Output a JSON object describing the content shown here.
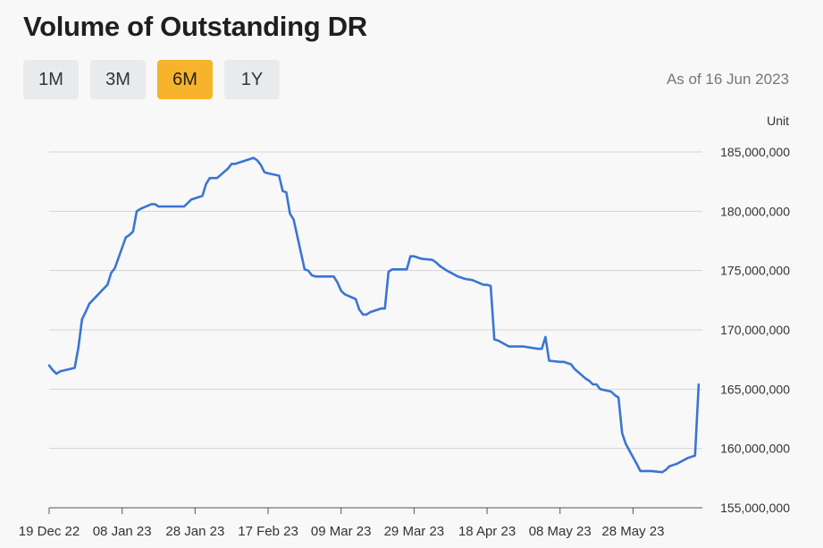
{
  "header": {
    "title": "Volume of Outstanding DR",
    "as_of": "As of 16 Jun 2023",
    "unit": "Unit"
  },
  "range_buttons": [
    {
      "label": "1M",
      "active": false
    },
    {
      "label": "3M",
      "active": false
    },
    {
      "label": "6M",
      "active": true
    },
    {
      "label": "1Y",
      "active": false
    }
  ],
  "colors": {
    "line": "#3a75d3",
    "active_button": "#f7b32b",
    "grid": "#d4d4d4"
  },
  "chart_data": {
    "type": "line",
    "title": "Volume of Outstanding DR",
    "xlabel": "",
    "ylabel": "Unit",
    "ylim": [
      155000000,
      185000000
    ],
    "y_ticks": [
      {
        "value": 185000000,
        "label": "185,000,000"
      },
      {
        "value": 180000000,
        "label": "180,000,000"
      },
      {
        "value": 175000000,
        "label": "175,000,000"
      },
      {
        "value": 170000000,
        "label": "170,000,000"
      },
      {
        "value": 165000000,
        "label": "165,000,000"
      },
      {
        "value": 160000000,
        "label": "160,000,000"
      },
      {
        "value": 155000000,
        "label": "155,000,000"
      }
    ],
    "x_range": [
      "2022-12-19",
      "2023-06-16"
    ],
    "x_ticks": [
      {
        "date": "2022-12-19",
        "label": "19 Dec 22"
      },
      {
        "date": "2023-01-08",
        "label": "08 Jan 23"
      },
      {
        "date": "2023-01-28",
        "label": "28 Jan 23"
      },
      {
        "date": "2023-02-17",
        "label": "17 Feb 23"
      },
      {
        "date": "2023-03-09",
        "label": "09 Mar 23"
      },
      {
        "date": "2023-03-29",
        "label": "29 Mar 23"
      },
      {
        "date": "2023-04-18",
        "label": "18 Apr 23"
      },
      {
        "date": "2023-05-08",
        "label": "08 May 23"
      },
      {
        "date": "2023-05-28",
        "label": "28 May 23"
      }
    ],
    "grid": true,
    "series": [
      {
        "name": "",
        "points": [
          [
            "2022-12-19",
            167000000
          ],
          [
            "2022-12-20",
            166600000
          ],
          [
            "2022-12-21",
            166300000
          ],
          [
            "2022-12-22",
            166500000
          ],
          [
            "2022-12-26",
            166800000
          ],
          [
            "2022-12-27",
            168500000
          ],
          [
            "2022-12-28",
            170900000
          ],
          [
            "2022-12-29",
            171500000
          ],
          [
            "2022-12-30",
            172200000
          ],
          [
            "2023-01-03",
            173500000
          ],
          [
            "2023-01-04",
            173800000
          ],
          [
            "2023-01-05",
            174800000
          ],
          [
            "2023-01-06",
            175200000
          ],
          [
            "2023-01-09",
            177800000
          ],
          [
            "2023-01-10",
            178000000
          ],
          [
            "2023-01-11",
            178300000
          ],
          [
            "2023-01-12",
            180000000
          ],
          [
            "2023-01-13",
            180200000
          ],
          [
            "2023-01-16",
            180600000
          ],
          [
            "2023-01-17",
            180600000
          ],
          [
            "2023-01-18",
            180400000
          ],
          [
            "2023-01-19",
            180400000
          ],
          [
            "2023-01-20",
            180400000
          ],
          [
            "2023-01-25",
            180400000
          ],
          [
            "2023-01-26",
            180700000
          ],
          [
            "2023-01-27",
            181000000
          ],
          [
            "2023-01-30",
            181300000
          ],
          [
            "2023-01-31",
            182300000
          ],
          [
            "2023-02-01",
            182800000
          ],
          [
            "2023-02-02",
            182800000
          ],
          [
            "2023-02-03",
            182800000
          ],
          [
            "2023-02-06",
            183600000
          ],
          [
            "2023-02-07",
            184000000
          ],
          [
            "2023-02-08",
            184000000
          ],
          [
            "2023-02-09",
            184100000
          ],
          [
            "2023-02-10",
            184200000
          ],
          [
            "2023-02-13",
            184500000
          ],
          [
            "2023-02-14",
            184300000
          ],
          [
            "2023-02-15",
            183900000
          ],
          [
            "2023-02-16",
            183300000
          ],
          [
            "2023-02-17",
            183200000
          ],
          [
            "2023-02-20",
            183000000
          ],
          [
            "2023-02-21",
            181700000
          ],
          [
            "2023-02-22",
            181600000
          ],
          [
            "2023-02-23",
            179800000
          ],
          [
            "2023-02-24",
            179300000
          ],
          [
            "2023-02-27",
            175100000
          ],
          [
            "2023-02-28",
            175000000
          ],
          [
            "2023-03-01",
            174600000
          ],
          [
            "2023-03-02",
            174500000
          ],
          [
            "2023-03-07",
            174500000
          ],
          [
            "2023-03-08",
            174000000
          ],
          [
            "2023-03-09",
            173300000
          ],
          [
            "2023-03-10",
            173000000
          ],
          [
            "2023-03-13",
            172600000
          ],
          [
            "2023-03-14",
            171700000
          ],
          [
            "2023-03-15",
            171300000
          ],
          [
            "2023-03-16",
            171300000
          ],
          [
            "2023-03-17",
            171500000
          ],
          [
            "2023-03-20",
            171800000
          ],
          [
            "2023-03-21",
            171800000
          ],
          [
            "2023-03-22",
            174900000
          ],
          [
            "2023-03-23",
            175100000
          ],
          [
            "2023-03-24",
            175100000
          ],
          [
            "2023-03-27",
            175100000
          ],
          [
            "2023-03-28",
            176200000
          ],
          [
            "2023-03-29",
            176200000
          ],
          [
            "2023-03-30",
            176100000
          ],
          [
            "2023-03-31",
            176000000
          ],
          [
            "2023-04-03",
            175900000
          ],
          [
            "2023-04-04",
            175700000
          ],
          [
            "2023-04-05",
            175400000
          ],
          [
            "2023-04-07",
            175000000
          ],
          [
            "2023-04-10",
            174500000
          ],
          [
            "2023-04-11",
            174400000
          ],
          [
            "2023-04-12",
            174300000
          ],
          [
            "2023-04-14",
            174200000
          ],
          [
            "2023-04-17",
            173800000
          ],
          [
            "2023-04-18",
            173800000
          ],
          [
            "2023-04-19",
            173700000
          ],
          [
            "2023-04-20",
            169200000
          ],
          [
            "2023-04-21",
            169100000
          ],
          [
            "2023-04-24",
            168600000
          ],
          [
            "2023-04-25",
            168600000
          ],
          [
            "2023-04-26",
            168600000
          ],
          [
            "2023-04-27",
            168600000
          ],
          [
            "2023-04-28",
            168600000
          ],
          [
            "2023-05-02",
            168400000
          ],
          [
            "2023-05-03",
            168400000
          ],
          [
            "2023-05-04",
            169400000
          ],
          [
            "2023-05-05",
            167400000
          ],
          [
            "2023-05-08",
            167300000
          ],
          [
            "2023-05-09",
            167300000
          ],
          [
            "2023-05-10",
            167200000
          ],
          [
            "2023-05-11",
            167100000
          ],
          [
            "2023-05-12",
            166700000
          ],
          [
            "2023-05-15",
            165900000
          ],
          [
            "2023-05-16",
            165700000
          ],
          [
            "2023-05-17",
            165400000
          ],
          [
            "2023-05-18",
            165400000
          ],
          [
            "2023-05-19",
            165000000
          ],
          [
            "2023-05-22",
            164800000
          ],
          [
            "2023-05-23",
            164500000
          ],
          [
            "2023-05-24",
            164300000
          ],
          [
            "2023-05-25",
            161300000
          ],
          [
            "2023-05-26",
            160400000
          ],
          [
            "2023-05-29",
            158700000
          ],
          [
            "2023-05-30",
            158100000
          ],
          [
            "2023-05-31",
            158100000
          ],
          [
            "2023-06-01",
            158100000
          ],
          [
            "2023-06-02",
            158100000
          ],
          [
            "2023-06-05",
            158000000
          ],
          [
            "2023-06-06",
            158200000
          ],
          [
            "2023-06-07",
            158500000
          ],
          [
            "2023-06-08",
            158600000
          ],
          [
            "2023-06-09",
            158700000
          ],
          [
            "2023-06-12",
            159200000
          ],
          [
            "2023-06-13",
            159300000
          ],
          [
            "2023-06-14",
            159400000
          ],
          [
            "2023-06-15",
            165400000
          ]
        ]
      }
    ]
  }
}
